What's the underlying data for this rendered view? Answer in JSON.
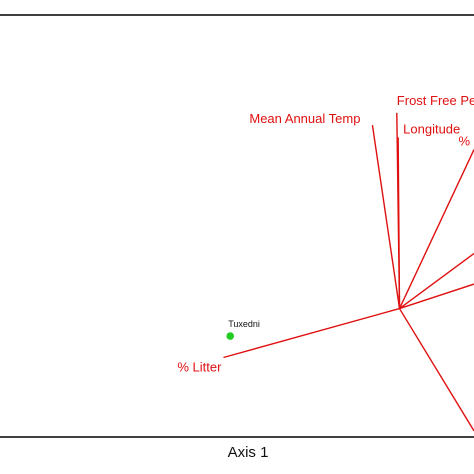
{
  "chart_data": {
    "type": "scatter",
    "title": "",
    "xlabel": "Axis 1",
    "ylabel": "",
    "origin": [
      0,
      0
    ],
    "xlim": [
      -0.59,
      0.11
    ],
    "ylim": [
      -0.21,
      0.48
    ],
    "grid": false,
    "legend": "none",
    "vector_color": "#e01010",
    "point_color": "#22cc22",
    "vectors": [
      {
        "name": "Mean Annual Temp",
        "x": -0.04,
        "y": 0.3
      },
      {
        "name": "Frost Free Pe",
        "x": -0.004,
        "y": 0.32
      },
      {
        "name": "Longitude",
        "x": -0.002,
        "y": 0.28
      },
      {
        "name": "%",
        "x": 0.11,
        "y": 0.26
      },
      {
        "name": "",
        "x": 0.11,
        "y": 0.09
      },
      {
        "name": "",
        "x": 0.11,
        "y": 0.04
      },
      {
        "name": "",
        "x": 0.11,
        "y": -0.2
      },
      {
        "name": "% Litter",
        "x": -0.26,
        "y": -0.08
      }
    ],
    "points": [
      {
        "name": "Tuxedni",
        "x": -0.25,
        "y": -0.045
      }
    ]
  }
}
